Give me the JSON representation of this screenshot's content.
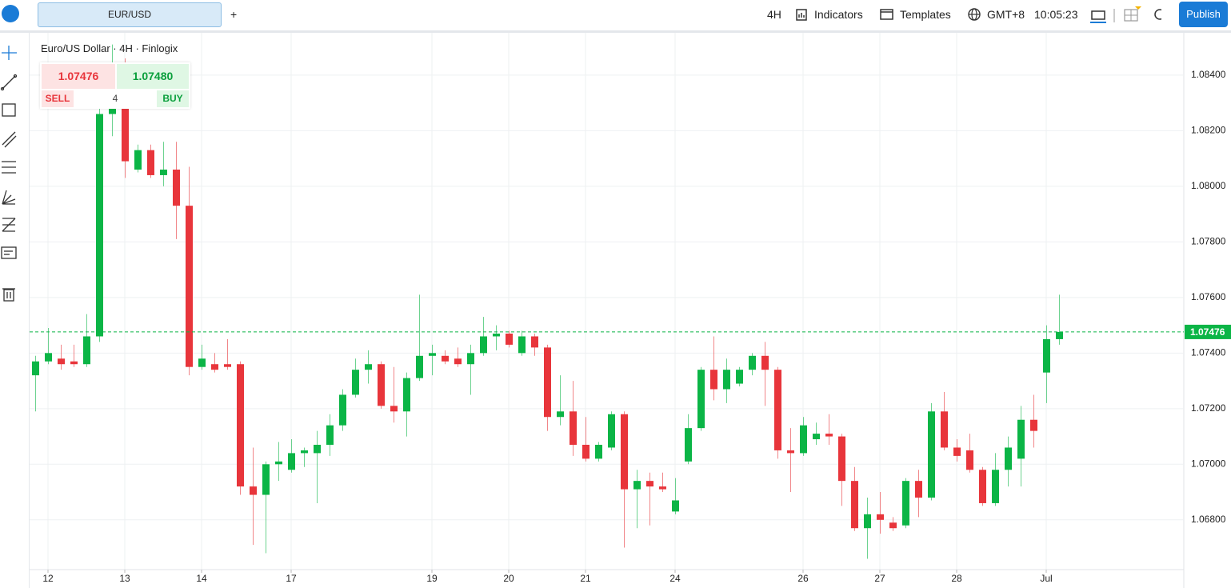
{
  "toolbar": {
    "symbol": "EUR/USD",
    "add": "+",
    "interval": "4H",
    "indicators": "Indicators",
    "templates": "Templates",
    "timezone": "GMT+8",
    "clock": "10:05:23",
    "publish": "Publish"
  },
  "quote": {
    "title": "Euro/US Dollar · 4H · Finlogix",
    "sell_price": "1.07476",
    "buy_price": "1.07480",
    "sell": "SELL",
    "spread": "4",
    "buy": "BUY"
  },
  "chart_data": {
    "type": "candlestick",
    "up_color": "#0bb546",
    "down_color": "#e8353b",
    "grid": true,
    "ylim": [
      1.06621,
      1.08555
    ],
    "yticks": [
      {
        "value": 1.068,
        "label": "1.06800"
      },
      {
        "value": 1.07,
        "label": "1.07000"
      },
      {
        "value": 1.072,
        "label": "1.07200"
      },
      {
        "value": 1.074,
        "label": "1.07400"
      },
      {
        "value": 1.076,
        "label": "1.07600"
      },
      {
        "value": 1.078,
        "label": "1.07800"
      },
      {
        "value": 1.08,
        "label": "1.08000"
      },
      {
        "value": 1.082,
        "label": "1.08200"
      },
      {
        "value": 1.084,
        "label": "1.08400"
      }
    ],
    "last_price": 1.07476,
    "categories": [
      null,
      "12",
      null,
      null,
      null,
      null,
      null,
      "13",
      null,
      null,
      null,
      null,
      null,
      "14",
      null,
      null,
      null,
      null,
      null,
      null,
      "17",
      null,
      null,
      null,
      null,
      null,
      null,
      null,
      null,
      null,
      null,
      "19",
      null,
      null,
      null,
      null,
      null,
      "20",
      null,
      null,
      null,
      null,
      null,
      "21",
      null,
      null,
      null,
      null,
      null,
      null,
      "24",
      null,
      null,
      null,
      null,
      null,
      null,
      null,
      null,
      null,
      "26",
      null,
      null,
      null,
      null,
      null,
      "27",
      null,
      null,
      null,
      null,
      null,
      "28",
      null,
      null,
      null,
      null,
      null,
      null,
      "Jul",
      null
    ],
    "open": [
      1.0732,
      1.0737,
      1.0738,
      1.0737,
      1.0736,
      1.0746,
      1.0826,
      1.0838,
      1.0806,
      1.0813,
      1.0804,
      1.0806,
      1.0793,
      1.0735,
      1.0736,
      1.0736,
      1.0736,
      1.0692,
      1.0689,
      1.07,
      1.0698,
      1.0704,
      1.0704,
      1.0707,
      1.0714,
      1.0725,
      1.0734,
      1.0736,
      1.0721,
      1.0719,
      1.0731,
      1.0739,
      1.0739,
      1.0738,
      1.0736,
      1.074,
      1.0746,
      1.0747,
      1.074,
      1.0746,
      1.0742,
      1.0717,
      1.0719,
      1.0707,
      1.0702,
      1.0706,
      1.0718,
      1.0691,
      1.0694,
      1.0692,
      1.0683,
      1.0701,
      1.0713,
      1.0734,
      1.0727,
      1.0729,
      1.0734,
      1.0739,
      1.0734,
      1.0705,
      1.0704,
      1.0709,
      1.0711,
      1.071,
      1.0694,
      1.0677,
      1.0682,
      1.0679,
      1.0678,
      1.0694,
      1.0688,
      1.0719,
      1.0706,
      1.0705,
      1.0698,
      1.0686,
      1.0698,
      1.0702,
      1.0716,
      1.0733,
      1.0745
    ],
    "high": [
      1.0739,
      1.0749,
      1.0743,
      1.0743,
      1.0754,
      1.0829,
      1.0851,
      1.0846,
      1.0815,
      1.0815,
      1.0816,
      1.0816,
      1.0807,
      1.0743,
      1.074,
      1.0745,
      1.0737,
      1.0706,
      1.0701,
      1.0708,
      1.0709,
      1.0706,
      1.0712,
      1.0718,
      1.0727,
      1.0738,
      1.0741,
      1.0737,
      1.0735,
      1.0733,
      1.0761,
      1.0743,
      1.0741,
      1.0742,
      1.0743,
      1.0753,
      1.075,
      1.0748,
      1.0748,
      1.0747,
      1.0743,
      1.0732,
      1.073,
      1.0717,
      1.0708,
      1.0719,
      1.0719,
      1.0698,
      1.0697,
      1.0697,
      1.0695,
      1.0718,
      1.0735,
      1.0746,
      1.0738,
      1.0735,
      1.074,
      1.0744,
      1.0735,
      1.0713,
      1.0717,
      1.0715,
      1.0718,
      1.0711,
      1.0699,
      1.0688,
      1.069,
      1.0681,
      1.0695,
      1.0698,
      1.0722,
      1.0726,
      1.0709,
      1.0711,
      1.0699,
      1.0704,
      1.071,
      1.0721,
      1.0725,
      1.075,
      1.0761
    ],
    "low": [
      1.0719,
      1.0736,
      1.0734,
      1.0735,
      1.0735,
      1.0744,
      1.0818,
      1.0803,
      1.0805,
      1.0803,
      1.08,
      1.0781,
      1.0732,
      1.0734,
      1.0733,
      1.0734,
      1.0689,
      1.0671,
      1.0668,
      1.0694,
      1.0697,
      1.0699,
      1.0686,
      1.0703,
      1.0712,
      1.0724,
      1.0729,
      1.072,
      1.0715,
      1.071,
      1.073,
      1.0732,
      1.0736,
      1.0735,
      1.0725,
      1.0739,
      1.0741,
      1.0742,
      1.0739,
      1.0739,
      1.0712,
      1.0714,
      1.0703,
      1.0701,
      1.0701,
      1.0705,
      1.067,
      1.0677,
      1.0678,
      1.069,
      1.0682,
      1.07,
      1.0712,
      1.0723,
      1.0722,
      1.0728,
      1.0732,
      1.0721,
      1.0702,
      1.069,
      1.0703,
      1.0707,
      1.0707,
      1.0685,
      1.0676,
      1.0666,
      1.0675,
      1.0676,
      1.0677,
      1.0681,
      1.0687,
      1.0705,
      1.0701,
      1.0697,
      1.0685,
      1.0685,
      1.0692,
      1.0692,
      1.0706,
      1.0722,
      1.0743
    ],
    "close": [
      1.0737,
      1.074,
      1.0736,
      1.0736,
      1.0746,
      1.0826,
      1.0828,
      1.0809,
      1.0813,
      1.0804,
      1.0806,
      1.0793,
      1.0735,
      1.0738,
      1.0734,
      1.0735,
      1.0692,
      1.0689,
      1.07,
      1.0701,
      1.0704,
      1.0705,
      1.0707,
      1.0714,
      1.0725,
      1.0734,
      1.0736,
      1.0721,
      1.0719,
      1.0731,
      1.0739,
      1.074,
      1.0737,
      1.0736,
      1.074,
      1.0746,
      1.0747,
      1.0743,
      1.0746,
      1.0742,
      1.0717,
      1.0719,
      1.0707,
      1.0702,
      1.0707,
      1.0718,
      1.0691,
      1.0694,
      1.0692,
      1.0691,
      1.0687,
      1.0713,
      1.0734,
      1.0727,
      1.0734,
      1.0734,
      1.0739,
      1.0734,
      1.0705,
      1.0704,
      1.0714,
      1.0711,
      1.071,
      1.0694,
      1.0677,
      1.0682,
      1.068,
      1.0677,
      1.0694,
      1.0688,
      1.0719,
      1.0706,
      1.0703,
      1.0698,
      1.0686,
      1.0698,
      1.0706,
      1.0716,
      1.0712,
      1.0745,
      1.07476
    ]
  }
}
